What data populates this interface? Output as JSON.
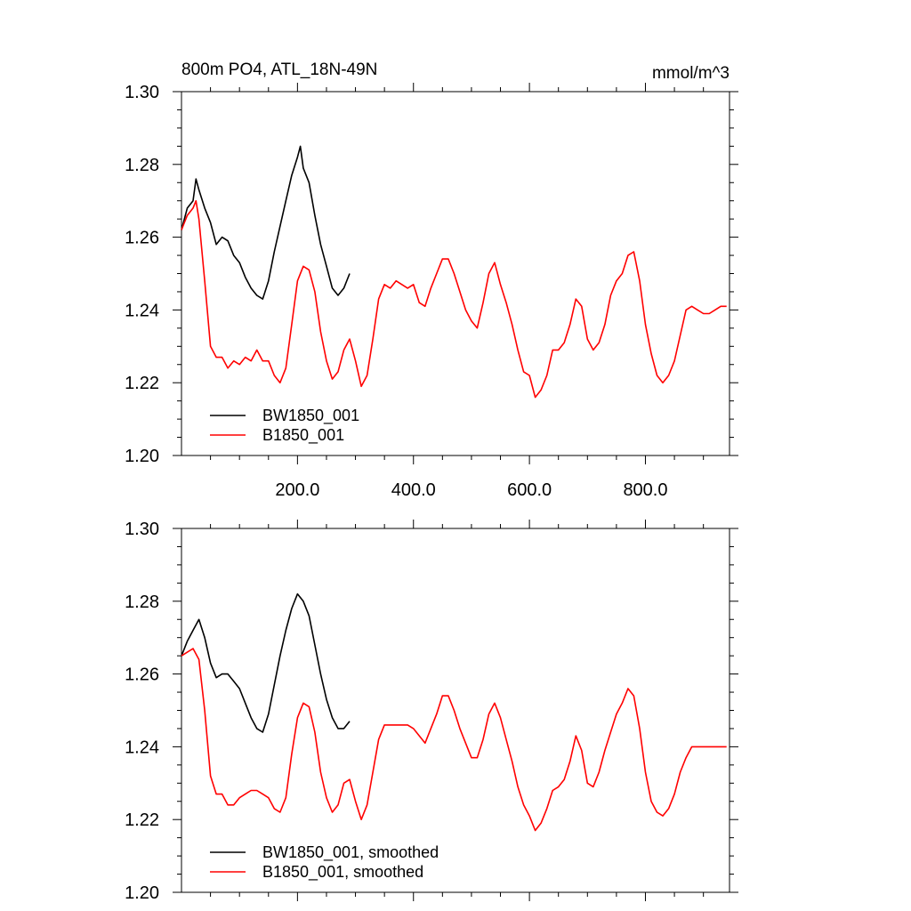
{
  "colors": {
    "BW1850_001": "#000000",
    "B1850_001": "#ff0000"
  },
  "chart_data": [
    {
      "type": "line",
      "title_left": "800m PO4, ATL_18N-49N",
      "title_right": "mmol/m^3",
      "xlim": [
        0,
        945
      ],
      "ylim": [
        1.2,
        1.3
      ],
      "xticks": [
        200,
        400,
        600,
        800
      ],
      "xtick_labels": [
        "200.0",
        "400.0",
        "600.0",
        "800.0"
      ],
      "yticks": [
        1.2,
        1.22,
        1.24,
        1.26,
        1.28,
        1.3
      ],
      "ytick_labels": [
        "1.20",
        "1.22",
        "1.24",
        "1.26",
        "1.28",
        "1.30"
      ],
      "legend": "bottom-left",
      "series": [
        {
          "name": "BW1850_001",
          "color": "#000000",
          "x": [
            0,
            10,
            20,
            25,
            30,
            40,
            50,
            60,
            70,
            80,
            90,
            100,
            110,
            120,
            130,
            140,
            150,
            160,
            170,
            180,
            190,
            200,
            205,
            210,
            220,
            230,
            240,
            250,
            260,
            270,
            280,
            290
          ],
          "y": [
            1.262,
            1.268,
            1.27,
            1.276,
            1.273,
            1.268,
            1.264,
            1.258,
            1.26,
            1.259,
            1.255,
            1.253,
            1.249,
            1.246,
            1.244,
            1.243,
            1.248,
            1.256,
            1.263,
            1.27,
            1.277,
            1.282,
            1.285,
            1.279,
            1.275,
            1.266,
            1.258,
            1.252,
            1.246,
            1.244,
            1.246,
            1.25
          ]
        },
        {
          "name": "B1850_001",
          "color": "#ff0000",
          "x": [
            0,
            10,
            20,
            25,
            30,
            40,
            50,
            60,
            70,
            80,
            90,
            100,
            110,
            120,
            130,
            140,
            150,
            160,
            170,
            180,
            190,
            200,
            210,
            220,
            230,
            240,
            250,
            260,
            270,
            280,
            290,
            300,
            310,
            320,
            330,
            340,
            350,
            360,
            370,
            380,
            390,
            400,
            410,
            420,
            430,
            440,
            450,
            460,
            470,
            480,
            490,
            500,
            510,
            520,
            530,
            540,
            550,
            560,
            570,
            580,
            590,
            600,
            610,
            620,
            630,
            640,
            650,
            660,
            670,
            680,
            690,
            700,
            710,
            720,
            730,
            740,
            750,
            760,
            770,
            780,
            790,
            800,
            810,
            820,
            830,
            840,
            850,
            860,
            870,
            880,
            890,
            900,
            910,
            920,
            930,
            940
          ],
          "y": [
            1.262,
            1.266,
            1.268,
            1.27,
            1.265,
            1.248,
            1.23,
            1.227,
            1.227,
            1.224,
            1.226,
            1.225,
            1.227,
            1.226,
            1.229,
            1.226,
            1.226,
            1.222,
            1.22,
            1.224,
            1.236,
            1.248,
            1.252,
            1.251,
            1.245,
            1.234,
            1.226,
            1.221,
            1.223,
            1.229,
            1.232,
            1.226,
            1.219,
            1.222,
            1.232,
            1.243,
            1.247,
            1.246,
            1.248,
            1.247,
            1.246,
            1.247,
            1.242,
            1.241,
            1.246,
            1.25,
            1.254,
            1.254,
            1.25,
            1.245,
            1.24,
            1.237,
            1.235,
            1.242,
            1.25,
            1.253,
            1.247,
            1.242,
            1.236,
            1.229,
            1.223,
            1.222,
            1.216,
            1.218,
            1.222,
            1.229,
            1.229,
            1.231,
            1.236,
            1.243,
            1.241,
            1.232,
            1.229,
            1.231,
            1.236,
            1.244,
            1.248,
            1.25,
            1.255,
            1.256,
            1.248,
            1.236,
            1.228,
            1.222,
            1.22,
            1.222,
            1.226,
            1.233,
            1.24,
            1.241,
            1.24,
            1.239,
            1.239,
            1.24,
            1.241,
            1.241
          ]
        }
      ]
    },
    {
      "type": "line",
      "xlim": [
        0,
        945
      ],
      "ylim": [
        1.2,
        1.3
      ],
      "yticks": [
        1.2,
        1.22,
        1.24,
        1.26,
        1.28,
        1.3
      ],
      "ytick_labels": [
        "1.20",
        "1.22",
        "1.24",
        "1.26",
        "1.28",
        "1.30"
      ],
      "legend": "bottom-left",
      "series": [
        {
          "name": "BW1850_001, smoothed",
          "color": "#000000",
          "x": [
            0,
            10,
            20,
            30,
            40,
            50,
            60,
            70,
            80,
            90,
            100,
            110,
            120,
            130,
            140,
            150,
            160,
            170,
            180,
            190,
            200,
            210,
            220,
            230,
            240,
            250,
            260,
            270,
            280,
            290
          ],
          "y": [
            1.265,
            1.269,
            1.272,
            1.275,
            1.27,
            1.263,
            1.259,
            1.26,
            1.26,
            1.258,
            1.256,
            1.252,
            1.248,
            1.245,
            1.244,
            1.249,
            1.257,
            1.265,
            1.272,
            1.278,
            1.282,
            1.28,
            1.276,
            1.268,
            1.26,
            1.253,
            1.248,
            1.245,
            1.245,
            1.247
          ]
        },
        {
          "name": "B1850_001, smoothed",
          "color": "#ff0000",
          "x": [
            0,
            10,
            20,
            30,
            40,
            50,
            60,
            70,
            80,
            90,
            100,
            110,
            120,
            130,
            140,
            150,
            160,
            170,
            180,
            190,
            200,
            210,
            220,
            230,
            240,
            250,
            260,
            270,
            280,
            290,
            300,
            310,
            320,
            330,
            340,
            350,
            360,
            370,
            380,
            390,
            400,
            410,
            420,
            430,
            440,
            450,
            460,
            470,
            480,
            490,
            500,
            510,
            520,
            530,
            540,
            550,
            560,
            570,
            580,
            590,
            600,
            610,
            620,
            630,
            640,
            650,
            660,
            670,
            680,
            690,
            700,
            710,
            720,
            730,
            740,
            750,
            760,
            770,
            780,
            790,
            800,
            810,
            820,
            830,
            840,
            850,
            860,
            870,
            880,
            890,
            900,
            910,
            920,
            930,
            940
          ],
          "y": [
            1.265,
            1.266,
            1.267,
            1.264,
            1.25,
            1.232,
            1.227,
            1.227,
            1.224,
            1.224,
            1.226,
            1.227,
            1.228,
            1.228,
            1.227,
            1.226,
            1.223,
            1.222,
            1.226,
            1.238,
            1.248,
            1.252,
            1.251,
            1.244,
            1.233,
            1.226,
            1.222,
            1.224,
            1.23,
            1.231,
            1.225,
            1.22,
            1.224,
            1.233,
            1.242,
            1.246,
            1.246,
            1.246,
            1.246,
            1.246,
            1.245,
            1.243,
            1.241,
            1.245,
            1.249,
            1.254,
            1.254,
            1.25,
            1.245,
            1.241,
            1.237,
            1.237,
            1.242,
            1.249,
            1.252,
            1.248,
            1.242,
            1.236,
            1.229,
            1.224,
            1.221,
            1.217,
            1.219,
            1.223,
            1.228,
            1.229,
            1.231,
            1.236,
            1.243,
            1.239,
            1.23,
            1.229,
            1.233,
            1.239,
            1.244,
            1.249,
            1.252,
            1.256,
            1.254,
            1.245,
            1.233,
            1.225,
            1.222,
            1.221,
            1.223,
            1.227,
            1.233,
            1.237,
            1.24,
            1.24,
            1.24,
            1.24,
            1.24,
            1.24,
            1.24
          ]
        }
      ]
    }
  ]
}
